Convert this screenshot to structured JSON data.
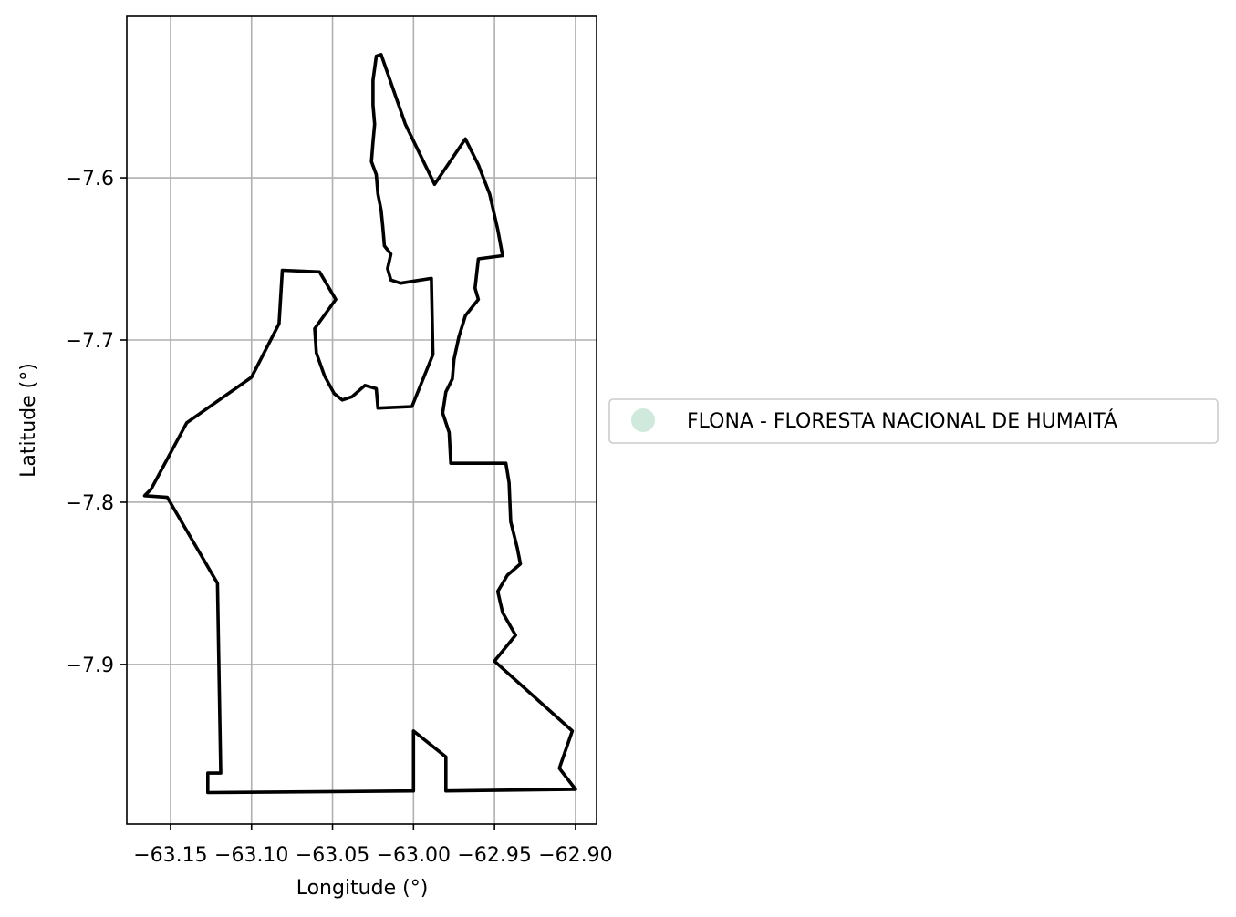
{
  "chart_data": {
    "type": "map",
    "xlabel": "Longitude (°)",
    "ylabel": "Latitude (°)",
    "xlim": [
      -63.177,
      -62.887
    ],
    "ylim": [
      -7.9984,
      -7.5005
    ],
    "grid": true,
    "x_ticks": [
      -63.15,
      -63.1,
      -63.05,
      -63.0,
      -62.95,
      -62.9
    ],
    "x_tick_labels": [
      "−63.15",
      "−63.10",
      "−63.05",
      "−63.00",
      "−62.95",
      "−62.90"
    ],
    "y_ticks": [
      -7.6,
      -7.7,
      -7.8,
      -7.9
    ],
    "y_tick_labels": [
      "−7.6",
      "−7.7",
      "−7.8",
      "−7.9"
    ],
    "legend": {
      "placement": "center-right outside",
      "entries": [
        {
          "label": "FLONA - FLORESTA NACIONAL DE HUMAITÁ",
          "color": "#cfeadd",
          "marker": "circle"
        }
      ]
    },
    "boundary_color": "#000000",
    "boundary": [
      [
        -63.02,
        -7.524
      ],
      [
        -63.005,
        -7.567
      ],
      [
        -62.987,
        -7.604
      ],
      [
        -62.968,
        -7.576
      ],
      [
        -62.96,
        -7.592
      ],
      [
        -62.953,
        -7.61
      ],
      [
        -62.948,
        -7.632
      ],
      [
        -62.945,
        -7.648
      ],
      [
        -62.96,
        -7.65
      ],
      [
        -62.962,
        -7.668
      ],
      [
        -62.96,
        -7.675
      ],
      [
        -62.968,
        -7.685
      ],
      [
        -62.972,
        -7.698
      ],
      [
        -62.975,
        -7.712
      ],
      [
        -62.976,
        -7.724
      ],
      [
        -62.98,
        -7.732
      ],
      [
        -62.982,
        -7.745
      ],
      [
        -62.978,
        -7.757
      ],
      [
        -62.977,
        -7.776
      ],
      [
        -62.943,
        -7.776
      ],
      [
        -62.941,
        -7.788
      ],
      [
        -62.94,
        -7.812
      ],
      [
        -62.936,
        -7.828
      ],
      [
        -62.934,
        -7.838
      ],
      [
        -62.942,
        -7.845
      ],
      [
        -62.948,
        -7.855
      ],
      [
        -62.945,
        -7.868
      ],
      [
        -62.937,
        -7.882
      ],
      [
        -62.95,
        -7.898
      ],
      [
        -62.902,
        -7.941
      ],
      [
        -62.91,
        -7.964
      ],
      [
        -62.9,
        -7.977
      ],
      [
        -62.98,
        -7.978
      ],
      [
        -62.98,
        -7.957
      ],
      [
        -63.0,
        -7.941
      ],
      [
        -63.0,
        -7.978
      ],
      [
        -63.127,
        -7.979
      ],
      [
        -63.127,
        -7.967
      ],
      [
        -63.119,
        -7.967
      ],
      [
        -63.121,
        -7.85
      ],
      [
        -63.152,
        -7.797
      ],
      [
        -63.166,
        -7.796
      ],
      [
        -63.162,
        -7.792
      ],
      [
        -63.14,
        -7.751
      ],
      [
        -63.1,
        -7.723
      ],
      [
        -63.083,
        -7.69
      ],
      [
        -63.081,
        -7.657
      ],
      [
        -63.058,
        -7.658
      ],
      [
        -63.048,
        -7.675
      ],
      [
        -63.061,
        -7.693
      ],
      [
        -63.06,
        -7.708
      ],
      [
        -63.055,
        -7.722
      ],
      [
        -63.049,
        -7.733
      ],
      [
        -63.044,
        -7.737
      ],
      [
        -63.038,
        -7.735
      ],
      [
        -63.03,
        -7.728
      ],
      [
        -63.023,
        -7.73
      ],
      [
        -63.022,
        -7.742
      ],
      [
        -63.001,
        -7.741
      ],
      [
        -62.988,
        -7.709
      ],
      [
        -62.989,
        -7.662
      ],
      [
        -63.008,
        -7.665
      ],
      [
        -63.014,
        -7.663
      ],
      [
        -63.016,
        -7.656
      ],
      [
        -63.014,
        -7.647
      ],
      [
        -63.018,
        -7.642
      ],
      [
        -63.019,
        -7.63
      ],
      [
        -63.02,
        -7.62
      ],
      [
        -63.022,
        -7.61
      ],
      [
        -63.023,
        -7.598
      ],
      [
        -63.026,
        -7.59
      ],
      [
        -63.025,
        -7.578
      ],
      [
        -63.024,
        -7.567
      ],
      [
        -63.025,
        -7.555
      ],
      [
        -63.025,
        -7.54
      ],
      [
        -63.023,
        -7.525
      ],
      [
        -63.02,
        -7.524
      ]
    ]
  }
}
